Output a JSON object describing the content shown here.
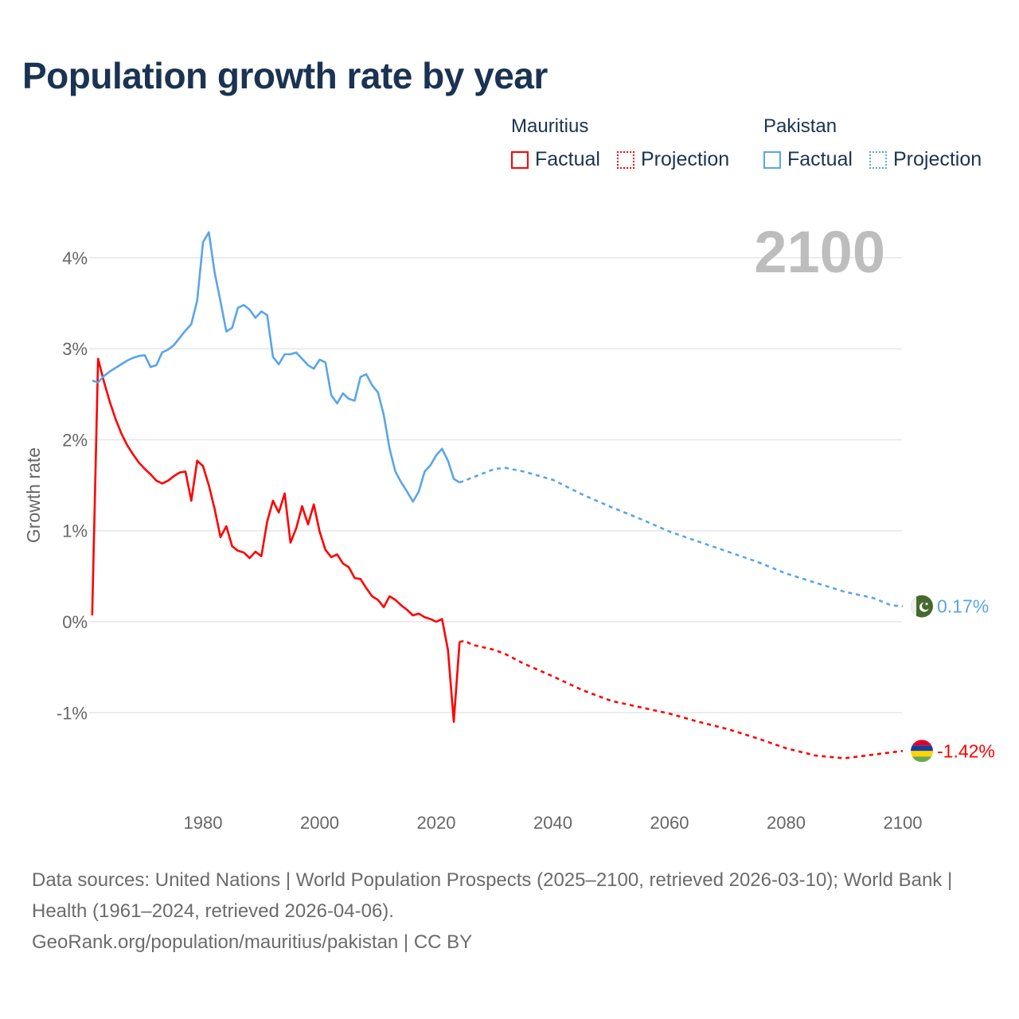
{
  "chart_data": {
    "type": "line",
    "title": "Population growth rate by year",
    "ylabel": "Growth rate",
    "xlabel": "",
    "year_label": "2100",
    "xlim": [
      1961,
      2100
    ],
    "ylim": [
      -1.7,
      4.4
    ],
    "x_ticks": [
      1980,
      2000,
      2020,
      2040,
      2060,
      2080,
      2100
    ],
    "y_ticks": [
      {
        "v": -1,
        "label": "-1%"
      },
      {
        "v": 0,
        "label": "0%"
      },
      {
        "v": 1,
        "label": "1%"
      },
      {
        "v": 2,
        "label": "2%"
      },
      {
        "v": 3,
        "label": "3%"
      },
      {
        "v": 4,
        "label": "4%"
      }
    ],
    "grid": true,
    "legend_position": "top-right",
    "series": [
      {
        "name": "Mauritius",
        "color": "#ff0000",
        "end_label": "-1.42%",
        "flag": "mauritius-flag",
        "factual": {
          "x": [
            1961,
            1962,
            1963,
            1964,
            1965,
            1966,
            1967,
            1968,
            1969,
            1970,
            1971,
            1972,
            1973,
            1974,
            1975,
            1976,
            1977,
            1978,
            1979,
            1980,
            1981,
            1982,
            1983,
            1984,
            1985,
            1986,
            1987,
            1988,
            1989,
            1990,
            1991,
            1992,
            1993,
            1994,
            1995,
            1996,
            1997,
            1998,
            1999,
            2000,
            2001,
            2002,
            2003,
            2004,
            2005,
            2006,
            2007,
            2008,
            2009,
            2010,
            2011,
            2012,
            2013,
            2014,
            2015,
            2016,
            2017,
            2018,
            2019,
            2020,
            2021,
            2022,
            2023,
            2024
          ],
          "y": [
            0.07,
            2.89,
            2.64,
            2.42,
            2.23,
            2.07,
            1.94,
            1.84,
            1.75,
            1.68,
            1.62,
            1.55,
            1.52,
            1.55,
            1.6,
            1.64,
            1.65,
            1.33,
            1.77,
            1.71,
            1.5,
            1.24,
            0.93,
            1.05,
            0.83,
            0.78,
            0.76,
            0.7,
            0.77,
            0.72,
            1.1,
            1.33,
            1.2,
            1.41,
            0.87,
            1.03,
            1.27,
            1.07,
            1.29,
            0.99,
            0.79,
            0.71,
            0.74,
            0.64,
            0.6,
            0.48,
            0.47,
            0.37,
            0.28,
            0.24,
            0.16,
            0.28,
            0.24,
            0.18,
            0.13,
            0.07,
            0.09,
            0.05,
            0.03,
            0.0,
            0.03,
            -0.31,
            -1.1,
            -0.22
          ]
        },
        "projection": {
          "x": [
            2024,
            2025,
            2026,
            2028,
            2030,
            2032,
            2035,
            2040,
            2045,
            2050,
            2055,
            2060,
            2065,
            2070,
            2075,
            2080,
            2085,
            2090,
            2095,
            2100
          ],
          "y": [
            -0.22,
            -0.21,
            -0.25,
            -0.28,
            -0.31,
            -0.36,
            -0.46,
            -0.6,
            -0.75,
            -0.87,
            -0.94,
            -1.01,
            -1.1,
            -1.18,
            -1.28,
            -1.39,
            -1.47,
            -1.5,
            -1.46,
            -1.42
          ]
        }
      },
      {
        "name": "Pakistan",
        "color": "#5aa5e8",
        "end_label": "0.17%",
        "flag": "pakistan-flag",
        "factual": {
          "x": [
            1961,
            1962,
            1963,
            1964,
            1965,
            1966,
            1967,
            1968,
            1969,
            1970,
            1971,
            1972,
            1973,
            1974,
            1975,
            1976,
            1977,
            1978,
            1979,
            1980,
            1981,
            1982,
            1983,
            1984,
            1985,
            1986,
            1987,
            1988,
            1989,
            1990,
            1991,
            1992,
            1993,
            1994,
            1995,
            1996,
            1997,
            1998,
            1999,
            2000,
            2001,
            2002,
            2003,
            2004,
            2005,
            2006,
            2007,
            2008,
            2009,
            2010,
            2011,
            2012,
            2013,
            2014,
            2015,
            2016,
            2017,
            2018,
            2019,
            2020,
            2021,
            2022,
            2023,
            2024
          ],
          "y": [
            2.65,
            2.63,
            2.7,
            2.75,
            2.79,
            2.83,
            2.87,
            2.9,
            2.92,
            2.93,
            2.8,
            2.82,
            2.96,
            2.99,
            3.04,
            3.12,
            3.2,
            3.27,
            3.53,
            4.17,
            4.28,
            3.84,
            3.52,
            3.19,
            3.23,
            3.45,
            3.48,
            3.43,
            3.34,
            3.41,
            3.37,
            2.91,
            2.83,
            2.94,
            2.94,
            2.96,
            2.89,
            2.82,
            2.78,
            2.88,
            2.85,
            2.49,
            2.4,
            2.51,
            2.45,
            2.43,
            2.69,
            2.72,
            2.6,
            2.52,
            2.27,
            1.9,
            1.65,
            1.53,
            1.43,
            1.32,
            1.43,
            1.65,
            1.72,
            1.83,
            1.9,
            1.77,
            1.57,
            1.53
          ]
        },
        "projection": {
          "x": [
            2024,
            2026,
            2028,
            2030,
            2032,
            2035,
            2040,
            2045,
            2050,
            2055,
            2060,
            2065,
            2070,
            2075,
            2080,
            2085,
            2090,
            2095,
            2098,
            2100
          ],
          "y": [
            1.53,
            1.58,
            1.63,
            1.68,
            1.69,
            1.65,
            1.56,
            1.4,
            1.26,
            1.13,
            0.99,
            0.88,
            0.77,
            0.66,
            0.53,
            0.43,
            0.33,
            0.26,
            0.18,
            0.17
          ]
        }
      }
    ]
  },
  "legend": {
    "groups": [
      {
        "country": "Mauritius",
        "factual": "Factual",
        "projection": "Projection"
      },
      {
        "country": "Pakistan",
        "factual": "Factual",
        "projection": "Projection"
      }
    ]
  },
  "footer": {
    "sources": "Data sources: United Nations | World Population Prospects (2025–2100, retrieved 2026-03-10); World Bank | Health (1961–2024, retrieved 2026-04-06).",
    "credit": "GeoRank.org/population/mauritius/pakistan | CC BY"
  }
}
